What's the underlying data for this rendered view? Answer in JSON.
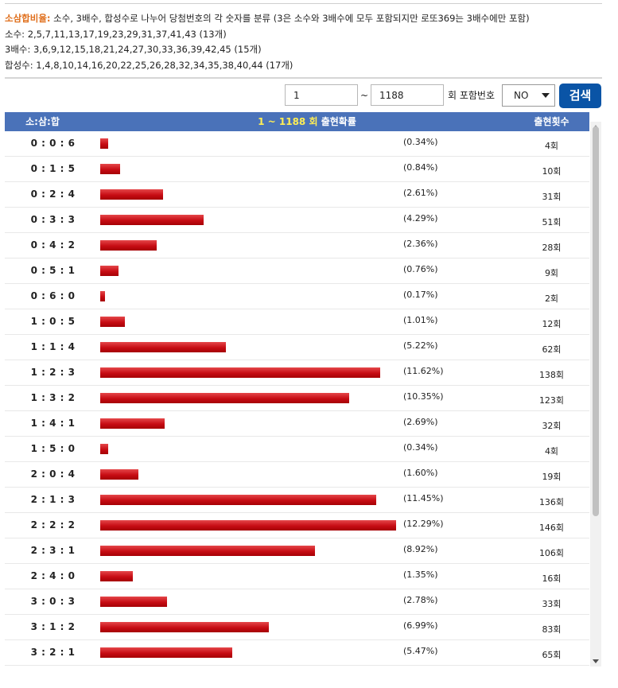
{
  "info": {
    "title": "소삼합비율:",
    "description": " 소수, 3배수, 합성수로 나누어 당첨번호의 각 숫자를 분류 (3은 소수와 3배수에 모두 포함되지만 로또369는 3배수에만 포함)",
    "prime": "소수: 2,5,7,11,13,17,19,23,29,31,37,41,43 (13개)",
    "multiple3": "3배수: 3,6,9,12,15,18,21,24,27,30,33,36,39,42,45 (15개)",
    "composite": "합성수: 1,4,8,10,14,16,20,22,25,26,28,32,34,35,38,40,44 (17개)"
  },
  "search": {
    "from": "1",
    "tilde": "~",
    "to": "1188",
    "include_label": "회 포함번호",
    "include_value": "NO",
    "button": "검색"
  },
  "table": {
    "header_ratio": "소:삼:합",
    "header_range": "1 ~ 1188 회",
    "header_prob": " 출현확률",
    "header_count": "출현횟수"
  },
  "rows": [
    {
      "ratio": "0 : 0 : 6",
      "pct": 0.34,
      "pct_label": "(0.34%)",
      "count": "4회"
    },
    {
      "ratio": "0 : 1 : 5",
      "pct": 0.84,
      "pct_label": "(0.84%)",
      "count": "10회"
    },
    {
      "ratio": "0 : 2 : 4",
      "pct": 2.61,
      "pct_label": "(2.61%)",
      "count": "31회"
    },
    {
      "ratio": "0 : 3 : 3",
      "pct": 4.29,
      "pct_label": "(4.29%)",
      "count": "51회"
    },
    {
      "ratio": "0 : 4 : 2",
      "pct": 2.36,
      "pct_label": "(2.36%)",
      "count": "28회"
    },
    {
      "ratio": "0 : 5 : 1",
      "pct": 0.76,
      "pct_label": "(0.76%)",
      "count": "9회"
    },
    {
      "ratio": "0 : 6 : 0",
      "pct": 0.17,
      "pct_label": "(0.17%)",
      "count": "2회"
    },
    {
      "ratio": "1 : 0 : 5",
      "pct": 1.01,
      "pct_label": "(1.01%)",
      "count": "12회"
    },
    {
      "ratio": "1 : 1 : 4",
      "pct": 5.22,
      "pct_label": "(5.22%)",
      "count": "62회"
    },
    {
      "ratio": "1 : 2 : 3",
      "pct": 11.62,
      "pct_label": "(11.62%)",
      "count": "138회"
    },
    {
      "ratio": "1 : 3 : 2",
      "pct": 10.35,
      "pct_label": "(10.35%)",
      "count": "123회"
    },
    {
      "ratio": "1 : 4 : 1",
      "pct": 2.69,
      "pct_label": "(2.69%)",
      "count": "32회"
    },
    {
      "ratio": "1 : 5 : 0",
      "pct": 0.34,
      "pct_label": "(0.34%)",
      "count": "4회"
    },
    {
      "ratio": "2 : 0 : 4",
      "pct": 1.6,
      "pct_label": "(1.60%)",
      "count": "19회"
    },
    {
      "ratio": "2 : 1 : 3",
      "pct": 11.45,
      "pct_label": "(11.45%)",
      "count": "136회"
    },
    {
      "ratio": "2 : 2 : 2",
      "pct": 12.29,
      "pct_label": "(12.29%)",
      "count": "146회"
    },
    {
      "ratio": "2 : 3 : 1",
      "pct": 8.92,
      "pct_label": "(8.92%)",
      "count": "106회"
    },
    {
      "ratio": "2 : 4 : 0",
      "pct": 1.35,
      "pct_label": "(1.35%)",
      "count": "16회"
    },
    {
      "ratio": "3 : 0 : 3",
      "pct": 2.78,
      "pct_label": "(2.78%)",
      "count": "33회"
    },
    {
      "ratio": "3 : 1 : 2",
      "pct": 6.99,
      "pct_label": "(6.99%)",
      "count": "83회"
    },
    {
      "ratio": "3 : 2 : 1",
      "pct": 5.47,
      "pct_label": "(5.47%)",
      "count": "65회"
    }
  ],
  "colors": {
    "header_bg": "#4a72b9",
    "bar": "#c70d14",
    "button_bg": "#0a54a6",
    "highlight": "#e0701e",
    "range_text": "#ffee55"
  }
}
